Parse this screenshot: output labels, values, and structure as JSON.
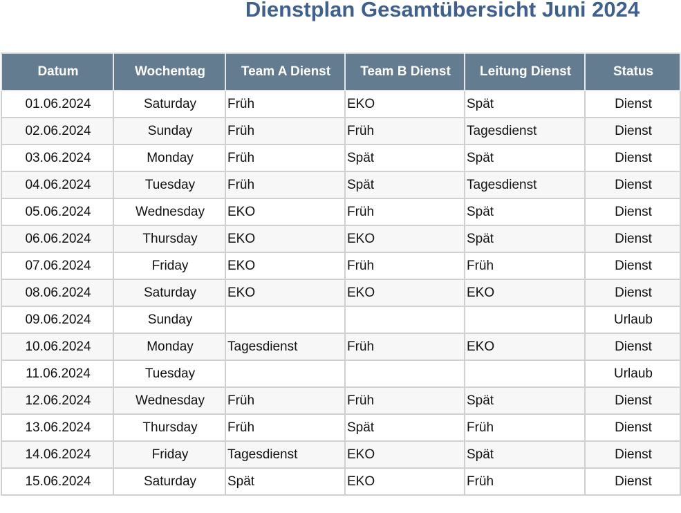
{
  "title": "Dienstplan Gesamtübersicht Juni 2024",
  "colors": {
    "header_bg": "#647c8f",
    "title": "#3d6090"
  },
  "columns": [
    "Datum",
    "Wochentag",
    "Team A Dienst",
    "Team B Dienst",
    "Leitung Dienst",
    "Status"
  ],
  "rows": [
    [
      "01.06.2024",
      "Saturday",
      "Früh",
      "EKO",
      "Spät",
      "Dienst"
    ],
    [
      "02.06.2024",
      "Sunday",
      "Früh",
      "Früh",
      "Tagesdienst",
      "Dienst"
    ],
    [
      "03.06.2024",
      "Monday",
      "Früh",
      "Spät",
      "Spät",
      "Dienst"
    ],
    [
      "04.06.2024",
      "Tuesday",
      "Früh",
      "Spät",
      "Tagesdienst",
      "Dienst"
    ],
    [
      "05.06.2024",
      "Wednesday",
      "EKO",
      "Früh",
      "Spät",
      "Dienst"
    ],
    [
      "06.06.2024",
      "Thursday",
      "EKO",
      "EKO",
      "Spät",
      "Dienst"
    ],
    [
      "07.06.2024",
      "Friday",
      "EKO",
      "Früh",
      "Früh",
      "Dienst"
    ],
    [
      "08.06.2024",
      "Saturday",
      "EKO",
      "EKO",
      "EKO",
      "Dienst"
    ],
    [
      "09.06.2024",
      "Sunday",
      "",
      "",
      "",
      "Urlaub"
    ],
    [
      "10.06.2024",
      "Monday",
      "Tagesdienst",
      "Früh",
      "EKO",
      "Dienst"
    ],
    [
      "11.06.2024",
      "Tuesday",
      "",
      "",
      "",
      "Urlaub"
    ],
    [
      "12.06.2024",
      "Wednesday",
      "Früh",
      "Früh",
      "Spät",
      "Dienst"
    ],
    [
      "13.06.2024",
      "Thursday",
      "Früh",
      "Spät",
      "Früh",
      "Dienst"
    ],
    [
      "14.06.2024",
      "Friday",
      "Tagesdienst",
      "EKO",
      "Spät",
      "Dienst"
    ],
    [
      "15.06.2024",
      "Saturday",
      "Spät",
      "EKO",
      "Früh",
      "Dienst"
    ]
  ]
}
